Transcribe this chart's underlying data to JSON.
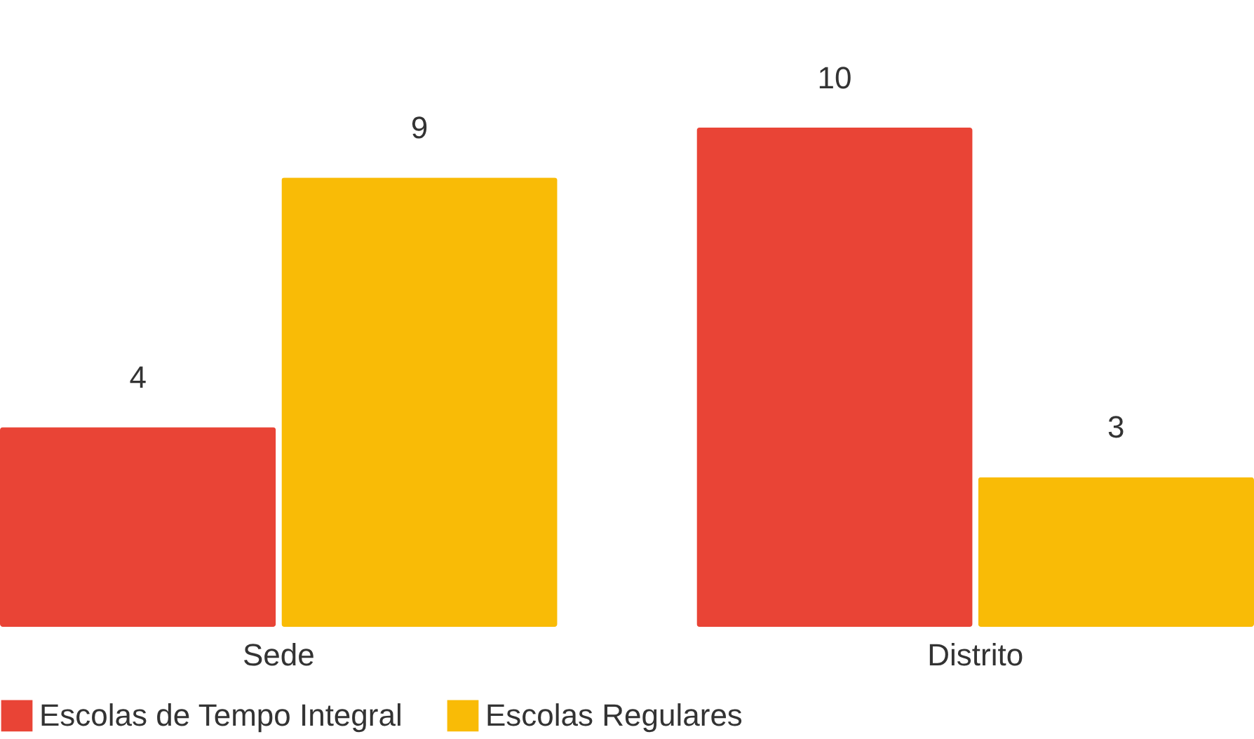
{
  "chart_data": {
    "type": "bar",
    "categories": [
      "Sede",
      "Distrito"
    ],
    "series": [
      {
        "name": "Escolas de Tempo Integral",
        "color": "#e94436",
        "values": [
          4,
          10
        ]
      },
      {
        "name": "Escolas Regulares",
        "color": "#f9bb06",
        "values": [
          9,
          3
        ]
      }
    ],
    "data_labels": true,
    "grid": false,
    "legend": "bottom"
  }
}
